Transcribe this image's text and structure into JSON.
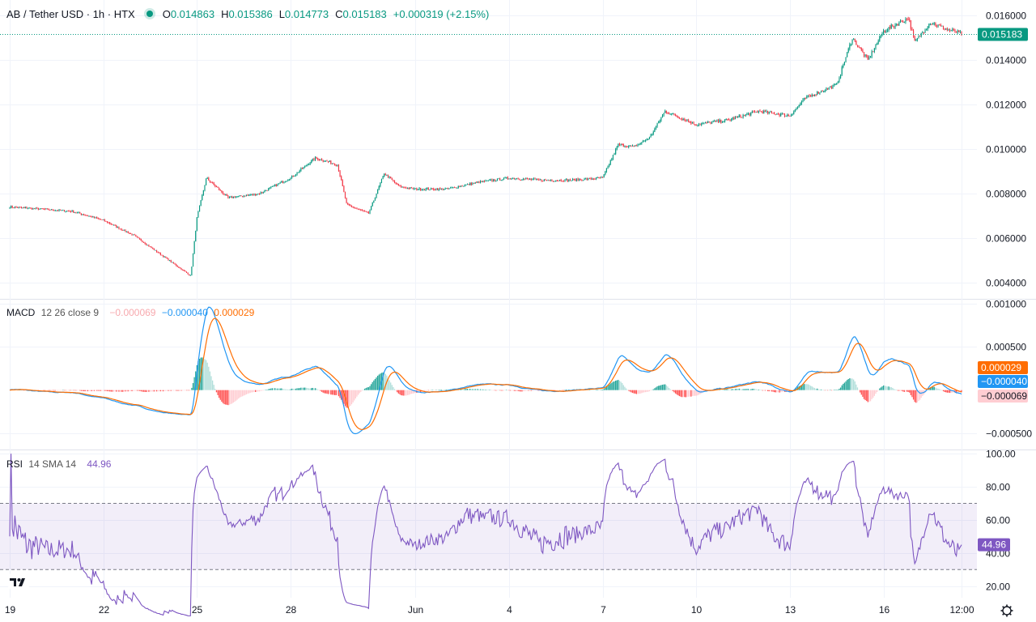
{
  "header": {
    "symbol": "AB / Tether USD · 1h · HTX",
    "o_label": "O",
    "o_value": "0.014863",
    "h_label": "H",
    "h_value": "0.015386",
    "l_label": "L",
    "l_value": "0.014773",
    "c_label": "C",
    "c_value": "0.015183",
    "change": "+0.000319 (+2.15%)"
  },
  "macd_title": {
    "name": "MACD",
    "params": "12 26 close 9",
    "hist": "−0.000069",
    "macd": "−0.000040",
    "signal": "0.000029"
  },
  "rsi_title": {
    "name": "RSI",
    "params": "14 SMA 14",
    "value": "44.96"
  },
  "colors": {
    "up": "#089981",
    "down": "#f23645",
    "macd": "#2196f3",
    "signal": "#ff6d00",
    "rsi": "#7e57c2"
  },
  "chart_data": [
    {
      "type": "candlestick",
      "title": "AB / Tether USD · 1h · HTX",
      "ylim": [
        0.0033,
        0.0167
      ],
      "yticks": [
        "0.004000",
        "0.006000",
        "0.008000",
        "0.010000",
        "0.012000",
        "0.014000",
        "0.016000"
      ],
      "x_ticks": [
        "19",
        "22",
        "25",
        "28",
        "Jun",
        "4",
        "7",
        "10",
        "13",
        "16",
        "12:00"
      ],
      "last_price_label": "0.015183",
      "last_price": 0.015183,
      "close_path": [
        [
          "19",
          0.0074
        ],
        [
          "20",
          0.0073
        ],
        [
          "21",
          0.0072
        ],
        [
          "22",
          0.0068
        ],
        [
          "23",
          0.0061
        ],
        [
          "24",
          0.0051
        ],
        [
          "24.8",
          0.0043
        ],
        [
          "25",
          0.0069
        ],
        [
          "25.3",
          0.0087
        ],
        [
          "26",
          0.0078
        ],
        [
          "27",
          0.008
        ],
        [
          "28",
          0.0087
        ],
        [
          "28.8",
          0.0096
        ],
        [
          "29.5",
          0.0093
        ],
        [
          "29.8",
          0.0075
        ],
        [
          "30.5",
          0.0071
        ],
        [
          "31",
          0.0089
        ],
        [
          "31.5",
          0.0083
        ],
        [
          "Jun",
          0.0082
        ],
        [
          "2",
          0.0082
        ],
        [
          "3",
          0.0085
        ],
        [
          "4",
          0.0087
        ],
        [
          "5",
          0.0086
        ],
        [
          "6",
          0.0086
        ],
        [
          "7",
          0.0087
        ],
        [
          "7.5",
          0.0102
        ],
        [
          "8",
          0.0101
        ],
        [
          "8.5",
          0.0105
        ],
        [
          "9",
          0.0117
        ],
        [
          "10",
          0.0111
        ],
        [
          "11",
          0.0113
        ],
        [
          "12",
          0.0117
        ],
        [
          "13",
          0.0115
        ],
        [
          "13.5",
          0.0123
        ],
        [
          "14",
          0.0126
        ],
        [
          "14.5",
          0.0129
        ],
        [
          "15",
          0.015
        ],
        [
          "15.5",
          0.014
        ],
        [
          "16",
          0.0153
        ],
        [
          "16.8",
          0.0159
        ],
        [
          "17",
          0.0148
        ],
        [
          "17.5",
          0.0157
        ],
        [
          "18",
          0.0154
        ],
        [
          "12:00",
          0.015183
        ]
      ]
    },
    {
      "type": "line",
      "title": "MACD 12 26 close 9",
      "ylim": [
        -0.00068,
        0.00105
      ],
      "yticks": [
        "−0.000500",
        "0.000500",
        "0.001000"
      ],
      "series": [
        {
          "name": "MACD",
          "last": -4e-05
        },
        {
          "name": "Signal",
          "last": 2.9e-05
        },
        {
          "name": "Histogram",
          "last": -6.9e-05
        }
      ],
      "value_labels": [
        "0.000029",
        "−0.000040",
        "−0.000069"
      ]
    },
    {
      "type": "line",
      "title": "RSI 14 SMA 14",
      "ylim": [
        13,
        102
      ],
      "yticks": [
        "20.00",
        "40.00",
        "60.00",
        "80.00",
        "100.00"
      ],
      "bands": [
        30,
        70
      ],
      "series": [
        {
          "name": "RSI",
          "last": 44.96
        }
      ],
      "value_label": "44.96"
    }
  ]
}
